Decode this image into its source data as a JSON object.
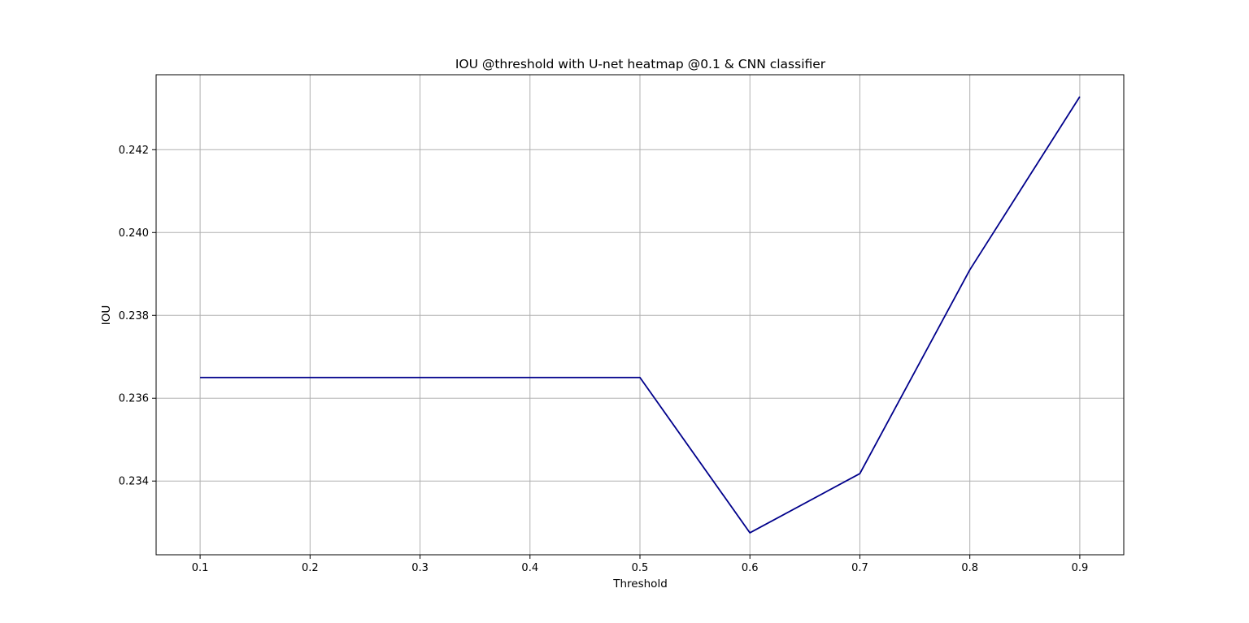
{
  "chart_data": {
    "type": "line",
    "title": "IOU @threshold with U-net heatmap @0.1 & CNN classifier",
    "xlabel": "Threshold",
    "ylabel": "IOU",
    "x": [
      0.1,
      0.2,
      0.3,
      0.4,
      0.5,
      0.6,
      0.7,
      0.8,
      0.9
    ],
    "series": [
      {
        "values": [
          0.2365,
          0.2365,
          0.2365,
          0.2365,
          0.2365,
          0.23275,
          0.23418,
          0.2391,
          0.24328
        ],
        "color": "#00008b"
      }
    ],
    "xticks": [
      0.1,
      0.2,
      0.3,
      0.4,
      0.5,
      0.6,
      0.7,
      0.8,
      0.9
    ],
    "xtick_labels": [
      "0.1",
      "0.2",
      "0.3",
      "0.4",
      "0.5",
      "0.6",
      "0.7",
      "0.8",
      "0.9"
    ],
    "yticks": [
      0.234,
      0.236,
      0.238,
      0.24,
      0.242
    ],
    "ytick_labels": [
      "0.234",
      "0.236",
      "0.238",
      "0.240",
      "0.242"
    ],
    "xlim": [
      0.06,
      0.94
    ],
    "ylim": [
      0.23222,
      0.24381
    ],
    "grid": true,
    "legend": "none"
  }
}
